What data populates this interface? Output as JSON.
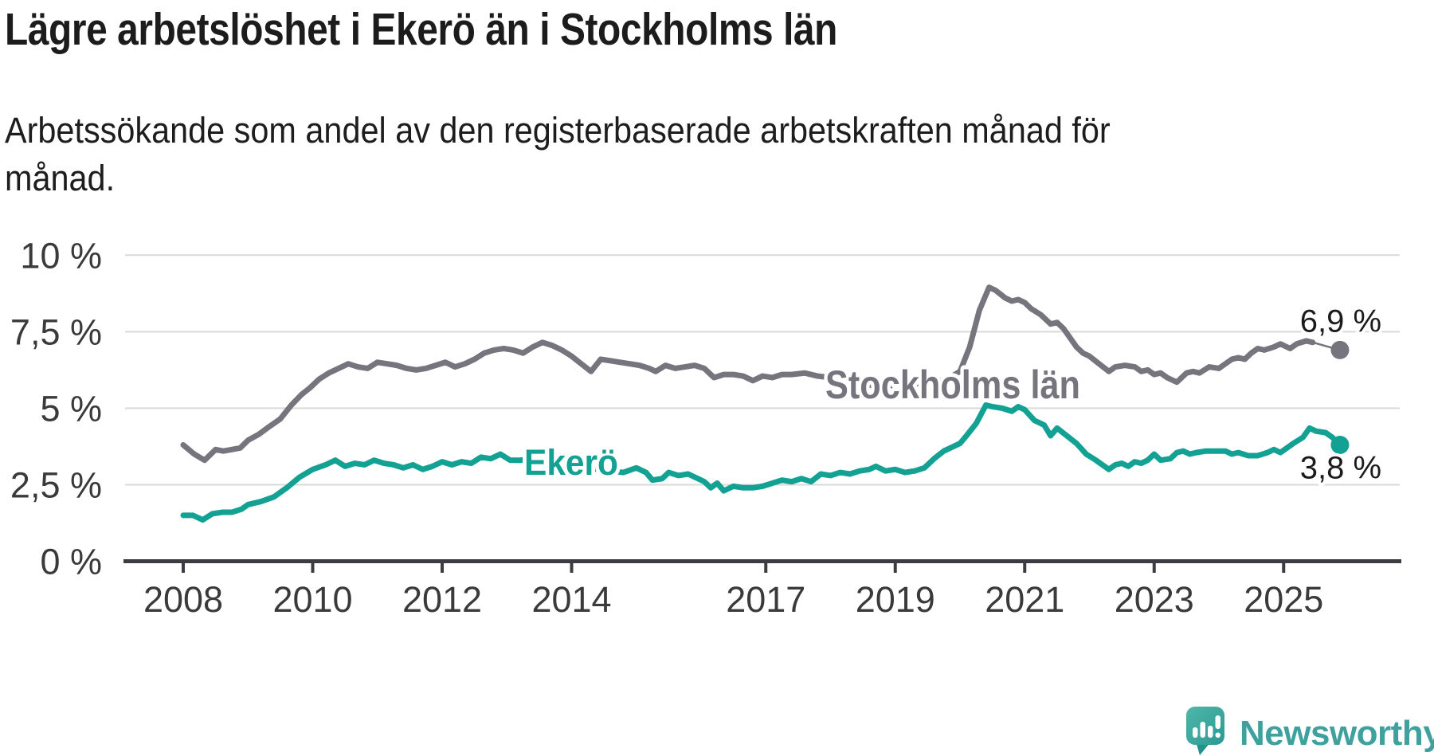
{
  "header": {
    "title": "Lägre arbetslöshet i Ekerö än i Stockholms län",
    "subtitle": "Arbetssökande som andel av den registerbaserade arbetskraften månad för månad."
  },
  "chart_data": {
    "type": "line",
    "title": "Lägre arbetslöshet i Ekerö än i Stockholms län",
    "subtitle": "Arbetssökande som andel av den registerbaserade arbetskraften månad för månad.",
    "unit": "%",
    "x_range": [
      2008,
      2025.87
    ],
    "y_range": [
      0,
      10
    ],
    "grid": true,
    "legend_position": "inline-labels",
    "y_ticks": [
      {
        "value": 10,
        "label": "10 %"
      },
      {
        "value": 7.5,
        "label": "7,5 %"
      },
      {
        "value": 5,
        "label": "5 %"
      },
      {
        "value": 2.5,
        "label": "2,5 %"
      },
      {
        "value": 0,
        "label": "0 %"
      }
    ],
    "x_ticks": [
      {
        "value": 2008,
        "label": "2008"
      },
      {
        "value": 2010,
        "label": "2010"
      },
      {
        "value": 2012,
        "label": "2012"
      },
      {
        "value": 2014,
        "label": "2014"
      },
      {
        "value": 2017,
        "label": "2017"
      },
      {
        "value": 2019,
        "label": "2019"
      },
      {
        "value": 2021,
        "label": "2021"
      },
      {
        "value": 2023,
        "label": "2023"
      },
      {
        "value": 2025,
        "label": "2025"
      }
    ],
    "style": {
      "axis_color": "#3c3c42",
      "grid_color": "#d9d9d9",
      "tick_label_color": "#3a3a3a",
      "value_label_color": "#1b1b1b",
      "background": "#ffffff"
    },
    "series": [
      {
        "name": "Stockholms län",
        "color": "#76747d",
        "end_label": "6,9 %",
        "end_value": 6.9,
        "points": [
          [
            2008.0,
            3.8
          ],
          [
            2008.17,
            3.5
          ],
          [
            2008.33,
            3.3
          ],
          [
            2008.5,
            3.65
          ],
          [
            2008.62,
            3.6
          ],
          [
            2008.75,
            3.65
          ],
          [
            2008.88,
            3.7
          ],
          [
            2009.0,
            3.95
          ],
          [
            2009.17,
            4.15
          ],
          [
            2009.33,
            4.4
          ],
          [
            2009.5,
            4.65
          ],
          [
            2009.67,
            5.1
          ],
          [
            2009.83,
            5.45
          ],
          [
            2009.95,
            5.65
          ],
          [
            2010.1,
            5.95
          ],
          [
            2010.25,
            6.15
          ],
          [
            2010.4,
            6.3
          ],
          [
            2010.55,
            6.45
          ],
          [
            2010.7,
            6.35
          ],
          [
            2010.85,
            6.3
          ],
          [
            2011.0,
            6.5
          ],
          [
            2011.15,
            6.45
          ],
          [
            2011.3,
            6.4
          ],
          [
            2011.45,
            6.3
          ],
          [
            2011.6,
            6.25
          ],
          [
            2011.75,
            6.3
          ],
          [
            2011.9,
            6.4
          ],
          [
            2012.05,
            6.5
          ],
          [
            2012.2,
            6.35
          ],
          [
            2012.35,
            6.45
          ],
          [
            2012.5,
            6.6
          ],
          [
            2012.65,
            6.8
          ],
          [
            2012.8,
            6.9
          ],
          [
            2012.95,
            6.95
          ],
          [
            2013.1,
            6.9
          ],
          [
            2013.25,
            6.8
          ],
          [
            2013.4,
            7.0
          ],
          [
            2013.55,
            7.15
          ],
          [
            2013.7,
            7.05
          ],
          [
            2013.85,
            6.9
          ],
          [
            2014.0,
            6.7
          ],
          [
            2014.15,
            6.45
          ],
          [
            2014.3,
            6.2
          ],
          [
            2014.45,
            6.6
          ],
          [
            2014.6,
            6.55
          ],
          [
            2014.75,
            6.5
          ],
          [
            2014.9,
            6.45
          ],
          [
            2015.05,
            6.4
          ],
          [
            2015.2,
            6.3
          ],
          [
            2015.3,
            6.2
          ],
          [
            2015.45,
            6.4
          ],
          [
            2015.6,
            6.3
          ],
          [
            2015.75,
            6.35
          ],
          [
            2015.9,
            6.4
          ],
          [
            2016.05,
            6.3
          ],
          [
            2016.2,
            6.0
          ],
          [
            2016.35,
            6.1
          ],
          [
            2016.5,
            6.1
          ],
          [
            2016.65,
            6.05
          ],
          [
            2016.8,
            5.9
          ],
          [
            2016.95,
            6.05
          ],
          [
            2017.1,
            6.0
          ],
          [
            2017.25,
            6.1
          ],
          [
            2017.4,
            6.1
          ],
          [
            2017.6,
            6.15
          ],
          [
            2017.8,
            6.05
          ],
          [
            2018.0,
            6.0
          ],
          [
            2018.2,
            5.9
          ],
          [
            2018.4,
            5.8
          ],
          [
            2018.6,
            5.75
          ],
          [
            2018.8,
            5.7
          ],
          [
            2019.0,
            5.75
          ],
          [
            2019.2,
            5.8
          ],
          [
            2019.4,
            5.8
          ],
          [
            2019.6,
            5.85
          ],
          [
            2019.8,
            5.95
          ],
          [
            2020.0,
            6.2
          ],
          [
            2020.15,
            7.0
          ],
          [
            2020.3,
            8.2
          ],
          [
            2020.45,
            8.95
          ],
          [
            2020.55,
            8.85
          ],
          [
            2020.7,
            8.6
          ],
          [
            2020.8,
            8.5
          ],
          [
            2020.9,
            8.55
          ],
          [
            2021.0,
            8.45
          ],
          [
            2021.1,
            8.25
          ],
          [
            2021.25,
            8.05
          ],
          [
            2021.4,
            7.75
          ],
          [
            2021.5,
            7.8
          ],
          [
            2021.6,
            7.6
          ],
          [
            2021.7,
            7.3
          ],
          [
            2021.8,
            7.0
          ],
          [
            2021.9,
            6.8
          ],
          [
            2022.0,
            6.7
          ],
          [
            2022.15,
            6.45
          ],
          [
            2022.3,
            6.2
          ],
          [
            2022.4,
            6.35
          ],
          [
            2022.55,
            6.4
          ],
          [
            2022.7,
            6.35
          ],
          [
            2022.8,
            6.2
          ],
          [
            2022.9,
            6.25
          ],
          [
            2023.0,
            6.1
          ],
          [
            2023.1,
            6.15
          ],
          [
            2023.2,
            6.0
          ],
          [
            2023.35,
            5.85
          ],
          [
            2023.5,
            6.15
          ],
          [
            2023.6,
            6.2
          ],
          [
            2023.7,
            6.15
          ],
          [
            2023.85,
            6.35
          ],
          [
            2024.0,
            6.3
          ],
          [
            2024.1,
            6.45
          ],
          [
            2024.2,
            6.6
          ],
          [
            2024.3,
            6.65
          ],
          [
            2024.4,
            6.6
          ],
          [
            2024.5,
            6.8
          ],
          [
            2024.6,
            6.95
          ],
          [
            2024.7,
            6.9
          ],
          [
            2024.85,
            7.0
          ],
          [
            2024.95,
            7.1
          ],
          [
            2025.1,
            6.95
          ],
          [
            2025.2,
            7.1
          ],
          [
            2025.35,
            7.2
          ],
          [
            2025.45,
            7.15
          ],
          [
            2025.87,
            6.9
          ]
        ]
      },
      {
        "name": "Ekerö",
        "color": "#12a192",
        "end_label": "3,8 %",
        "end_value": 3.8,
        "points": [
          [
            2008.0,
            1.5
          ],
          [
            2008.15,
            1.5
          ],
          [
            2008.3,
            1.35
          ],
          [
            2008.45,
            1.55
          ],
          [
            2008.6,
            1.6
          ],
          [
            2008.75,
            1.6
          ],
          [
            2008.9,
            1.7
          ],
          [
            2009.0,
            1.85
          ],
          [
            2009.2,
            1.95
          ],
          [
            2009.4,
            2.1
          ],
          [
            2009.6,
            2.4
          ],
          [
            2009.8,
            2.75
          ],
          [
            2010.0,
            3.0
          ],
          [
            2010.2,
            3.15
          ],
          [
            2010.35,
            3.3
          ],
          [
            2010.5,
            3.1
          ],
          [
            2010.65,
            3.2
          ],
          [
            2010.8,
            3.15
          ],
          [
            2010.95,
            3.3
          ],
          [
            2011.1,
            3.2
          ],
          [
            2011.25,
            3.15
          ],
          [
            2011.4,
            3.05
          ],
          [
            2011.55,
            3.15
          ],
          [
            2011.7,
            3.0
          ],
          [
            2011.85,
            3.1
          ],
          [
            2012.0,
            3.25
          ],
          [
            2012.15,
            3.15
          ],
          [
            2012.3,
            3.25
          ],
          [
            2012.45,
            3.2
          ],
          [
            2012.6,
            3.4
          ],
          [
            2012.75,
            3.35
          ],
          [
            2012.9,
            3.5
          ],
          [
            2013.05,
            3.3
          ],
          [
            2013.2,
            3.3
          ],
          [
            2013.4,
            3.35
          ],
          [
            2013.6,
            3.4
          ],
          [
            2013.8,
            3.3
          ],
          [
            2014.0,
            3.2
          ],
          [
            2014.2,
            3.1
          ],
          [
            2014.4,
            3.0
          ],
          [
            2014.6,
            2.95
          ],
          [
            2014.8,
            2.9
          ],
          [
            2015.0,
            3.05
          ],
          [
            2015.15,
            2.9
          ],
          [
            2015.25,
            2.65
          ],
          [
            2015.4,
            2.7
          ],
          [
            2015.5,
            2.9
          ],
          [
            2015.65,
            2.8
          ],
          [
            2015.8,
            2.85
          ],
          [
            2015.95,
            2.7
          ],
          [
            2016.05,
            2.6
          ],
          [
            2016.15,
            2.4
          ],
          [
            2016.25,
            2.55
          ],
          [
            2016.35,
            2.3
          ],
          [
            2016.5,
            2.45
          ],
          [
            2016.65,
            2.4
          ],
          [
            2016.8,
            2.4
          ],
          [
            2016.95,
            2.45
          ],
          [
            2017.1,
            2.55
          ],
          [
            2017.25,
            2.65
          ],
          [
            2017.4,
            2.6
          ],
          [
            2017.55,
            2.7
          ],
          [
            2017.7,
            2.6
          ],
          [
            2017.85,
            2.85
          ],
          [
            2018.0,
            2.8
          ],
          [
            2018.15,
            2.9
          ],
          [
            2018.3,
            2.85
          ],
          [
            2018.45,
            2.95
          ],
          [
            2018.6,
            3.0
          ],
          [
            2018.7,
            3.1
          ],
          [
            2018.85,
            2.95
          ],
          [
            2019.0,
            3.0
          ],
          [
            2019.15,
            2.9
          ],
          [
            2019.3,
            2.95
          ],
          [
            2019.45,
            3.05
          ],
          [
            2019.6,
            3.35
          ],
          [
            2019.75,
            3.6
          ],
          [
            2019.9,
            3.75
          ],
          [
            2020.0,
            3.85
          ],
          [
            2020.1,
            4.1
          ],
          [
            2020.25,
            4.5
          ],
          [
            2020.4,
            5.1
          ],
          [
            2020.5,
            5.05
          ],
          [
            2020.65,
            5.0
          ],
          [
            2020.8,
            4.9
          ],
          [
            2020.9,
            5.05
          ],
          [
            2021.0,
            4.95
          ],
          [
            2021.15,
            4.6
          ],
          [
            2021.3,
            4.45
          ],
          [
            2021.4,
            4.1
          ],
          [
            2021.5,
            4.35
          ],
          [
            2021.65,
            4.1
          ],
          [
            2021.8,
            3.85
          ],
          [
            2021.95,
            3.5
          ],
          [
            2022.1,
            3.3
          ],
          [
            2022.2,
            3.15
          ],
          [
            2022.3,
            3.0
          ],
          [
            2022.4,
            3.15
          ],
          [
            2022.5,
            3.2
          ],
          [
            2022.6,
            3.1
          ],
          [
            2022.7,
            3.25
          ],
          [
            2022.8,
            3.2
          ],
          [
            2022.9,
            3.3
          ],
          [
            2023.0,
            3.5
          ],
          [
            2023.1,
            3.3
          ],
          [
            2023.25,
            3.35
          ],
          [
            2023.35,
            3.55
          ],
          [
            2023.45,
            3.6
          ],
          [
            2023.55,
            3.5
          ],
          [
            2023.65,
            3.55
          ],
          [
            2023.8,
            3.6
          ],
          [
            2023.95,
            3.6
          ],
          [
            2024.1,
            3.6
          ],
          [
            2024.2,
            3.5
          ],
          [
            2024.3,
            3.55
          ],
          [
            2024.45,
            3.45
          ],
          [
            2024.6,
            3.45
          ],
          [
            2024.75,
            3.55
          ],
          [
            2024.85,
            3.65
          ],
          [
            2024.95,
            3.55
          ],
          [
            2025.05,
            3.7
          ],
          [
            2025.15,
            3.85
          ],
          [
            2025.3,
            4.05
          ],
          [
            2025.4,
            4.35
          ],
          [
            2025.5,
            4.25
          ],
          [
            2025.65,
            4.2
          ],
          [
            2025.75,
            4.05
          ],
          [
            2025.87,
            3.8
          ]
        ]
      }
    ]
  },
  "footer": {
    "brand": "Newsworthy",
    "logo_icon": "newsworthy-speech-bubble-chart-icon",
    "brand_color": "#3fa19d"
  }
}
